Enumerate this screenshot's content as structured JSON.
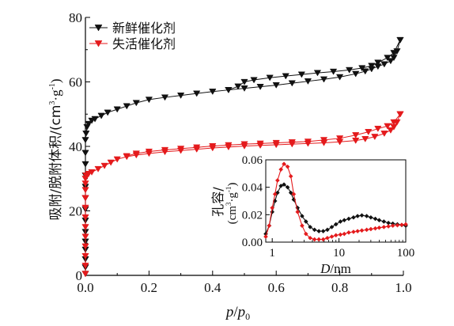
{
  "chart_data": [
    {
      "type": "scatter",
      "xlabel_italic": "p",
      "xlabel_sep": "/",
      "xlabel_base": "p",
      "xlabel_sub": "0",
      "ylabel_main": "吸附/脱附体积/(cm",
      "ylabel_sup1": "3",
      "ylabel_mid": "·g",
      "ylabel_sup2": "-1",
      "ylabel_end": ")",
      "xlim": [
        0.0,
        1.0
      ],
      "ylim": [
        0,
        80
      ],
      "xticks": [
        "0.0",
        "0.2",
        "0.4",
        "0.6",
        "0.8",
        "1.0"
      ],
      "yticks": [
        "0",
        "20",
        "40",
        "60",
        "80"
      ],
      "legend_position": "top-left",
      "series": [
        {
          "name": "新鲜催化剂",
          "color": "#111111",
          "marker": "triangle-down",
          "adsorption": {
            "x": [
              0.0,
              0.0,
              0.0,
              0.0,
              0.0,
              0.0,
              0.0,
              0.0,
              0.0,
              0.0,
              0.0,
              0.0,
              0.0,
              0.0,
              0.002,
              0.005,
              0.01,
              0.02,
              0.03,
              0.05,
              0.07,
              0.1,
              0.13,
              0.16,
              0.2,
              0.25,
              0.3,
              0.35,
              0.4,
              0.45,
              0.5,
              0.55,
              0.6,
              0.65,
              0.7,
              0.75,
              0.8,
              0.85,
              0.88,
              0.9,
              0.92,
              0.94,
              0.96,
              0.97,
              0.98,
              0.99
            ],
            "y": [
              0.5,
              2.5,
              5,
              8,
              10.5,
              13.5,
              17,
              20.5,
              24,
              27.5,
              31,
              34.5,
              38,
              42,
              44,
              46,
              47,
              48,
              48.5,
              49.5,
              50.5,
              51.5,
              52.5,
              53.5,
              54.5,
              55.2,
              55.8,
              56.4,
              57,
              57.5,
              58,
              58.5,
              59,
              59.6,
              60.2,
              60.8,
              61.5,
              62.5,
              63.3,
              64,
              64.8,
              65.5,
              66.5,
              67.5,
              69.5,
              73
            ]
          },
          "desorption": {
            "x": [
              0.99,
              0.97,
              0.95,
              0.92,
              0.9,
              0.87,
              0.83,
              0.78,
              0.73,
              0.68,
              0.63,
              0.58,
              0.53,
              0.5,
              0.48,
              0.45
            ],
            "y": [
              73,
              69,
              67.5,
              66,
              65,
              64.3,
              63.7,
              63.2,
              62.8,
              62.3,
              61.8,
              61.3,
              60.6,
              60,
              58.6,
              57.5
            ]
          }
        },
        {
          "name": "失活催化剂",
          "color": "#e41a1c",
          "marker": "triangle-down",
          "adsorption": {
            "x": [
              0.0,
              0.0,
              0.0,
              0.0,
              0.0,
              0.0,
              0.0,
              0.0,
              0.0,
              0.0,
              0.0,
              0.0,
              0.002,
              0.01,
              0.02,
              0.04,
              0.06,
              0.08,
              0.1,
              0.13,
              0.16,
              0.2,
              0.25,
              0.3,
              0.35,
              0.4,
              0.45,
              0.5,
              0.55,
              0.6,
              0.65,
              0.7,
              0.75,
              0.8,
              0.85,
              0.88,
              0.91,
              0.94,
              0.96,
              0.97,
              0.98,
              0.99
            ],
            "y": [
              0.5,
              3,
              6,
              9,
              12,
              15,
              18,
              21,
              24,
              26.5,
              28.5,
              30,
              31,
              31.5,
              32,
              33,
              34,
              35,
              36,
              36.8,
              37.3,
              37.8,
              38.3,
              38.7,
              39.1,
              39.5,
              39.8,
              40.1,
              40.3,
              40.5,
              40.7,
              40.9,
              41.1,
              41.4,
              41.8,
              42.3,
              43,
              44,
              45,
              46,
              47.5,
              50
            ]
          },
          "desorption": {
            "x": [
              0.99,
              0.97,
              0.95,
              0.92,
              0.89,
              0.85,
              0.8,
              0.75,
              0.7,
              0.65,
              0.6,
              0.55,
              0.5,
              0.45,
              0.4,
              0.35,
              0.3,
              0.25,
              0.2,
              0.16,
              0.13
            ],
            "y": [
              50,
              47.5,
              46.3,
              45.5,
              44.5,
              43.5,
              42.5,
              42,
              41.5,
              41.3,
              41.1,
              40.9,
              40.7,
              40.4,
              40.1,
              39.7,
              39.3,
              38.9,
              38.4,
              37.8,
              37
            ]
          }
        }
      ]
    },
    {
      "type": "line",
      "ylabel_line1": "孔容/",
      "ylabel_line2_main": "(cm",
      "ylabel_line2_sup1": "3",
      "ylabel_line2_mid": "·g",
      "ylabel_line2_sup2": "-1",
      "ylabel_line2_end": ")",
      "xlabel_italic": "D",
      "xlabel_rest": "/nm",
      "xscale": "log",
      "xlim": [
        0.8,
        100
      ],
      "ylim": [
        0,
        0.06
      ],
      "xticks": [
        "1",
        "10",
        "100"
      ],
      "yticks": [
        "0.00",
        "0.02",
        "0.04",
        "0.06"
      ],
      "series": [
        {
          "color": "#111111",
          "marker": "diamond",
          "x": [
            0.8,
            0.9,
            1.0,
            1.1,
            1.2,
            1.35,
            1.5,
            1.7,
            1.9,
            2.1,
            2.4,
            2.8,
            3.2,
            3.7,
            4.3,
            5,
            5.8,
            6.7,
            7.8,
            9,
            10.5,
            12,
            14,
            16.5,
            19,
            22,
            26,
            30,
            35,
            40,
            47,
            55,
            64,
            75,
            87,
            100
          ],
          "y": [
            0.006,
            0.012,
            0.022,
            0.03,
            0.036,
            0.041,
            0.042,
            0.04,
            0.036,
            0.031,
            0.025,
            0.019,
            0.015,
            0.011,
            0.009,
            0.008,
            0.008,
            0.009,
            0.011,
            0.013,
            0.015,
            0.016,
            0.017,
            0.018,
            0.019,
            0.0195,
            0.019,
            0.018,
            0.017,
            0.016,
            0.015,
            0.014,
            0.0135,
            0.013,
            0.0125,
            0.012
          ]
        },
        {
          "color": "#e41a1c",
          "marker": "diamond",
          "x": [
            0.8,
            0.9,
            1.0,
            1.1,
            1.2,
            1.35,
            1.5,
            1.7,
            1.9,
            2.1,
            2.4,
            2.8,
            3.2,
            3.7,
            4.3,
            5,
            5.8,
            6.7,
            7.8,
            9,
            10.5,
            12,
            14,
            16.5,
            19,
            22,
            26,
            30,
            35,
            40,
            47,
            55,
            64,
            75,
            87,
            100
          ],
          "y": [
            0.004,
            0.012,
            0.025,
            0.035,
            0.045,
            0.053,
            0.057,
            0.055,
            0.048,
            0.035,
            0.022,
            0.012,
            0.006,
            0.003,
            0.002,
            0.002,
            0.002,
            0.003,
            0.004,
            0.005,
            0.0055,
            0.006,
            0.007,
            0.0075,
            0.008,
            0.0085,
            0.009,
            0.0095,
            0.01,
            0.0105,
            0.011,
            0.0115,
            0.012,
            0.0123,
            0.0126,
            0.013
          ]
        }
      ]
    }
  ]
}
